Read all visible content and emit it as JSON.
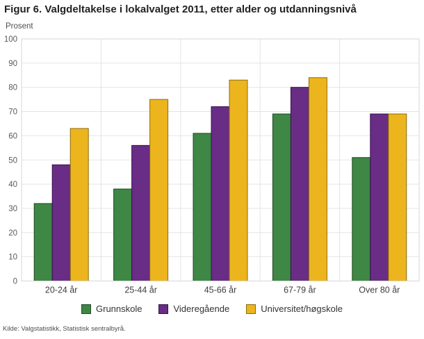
{
  "source": "Kilde: Valgstatistikk, Statistisk sentralbyrå.",
  "chart_data": {
    "type": "bar",
    "title": "Figur 6. Valgdeltakelse i lokalvalget 2011, etter alder og utdanningsnivå",
    "ylabel": "Prosent",
    "xlabel": "",
    "categories": [
      "20-24 år",
      "25-44 år",
      "45-66 år",
      "67-79 år",
      "Over 80 år"
    ],
    "series": [
      {
        "name": "Grunnskole",
        "color": "#3e8745",
        "border_color": "#1d4a22",
        "values": [
          32,
          38,
          61,
          69,
          51
        ]
      },
      {
        "name": "Videregående",
        "color": "#692d85",
        "border_color": "#33104a",
        "values": [
          48,
          56,
          72,
          80,
          69
        ]
      },
      {
        "name": "Universitet/høgskole",
        "color": "#ecb51e",
        "border_color": "#8c6b10",
        "values": [
          63,
          75,
          83,
          84,
          69
        ]
      }
    ],
    "ylim": [
      0,
      100
    ],
    "ytick_step": 10,
    "grid": true,
    "grid_color": "#e4e4e4",
    "plot_border_color": "#d7d7d7",
    "legend_position": "bottom"
  }
}
